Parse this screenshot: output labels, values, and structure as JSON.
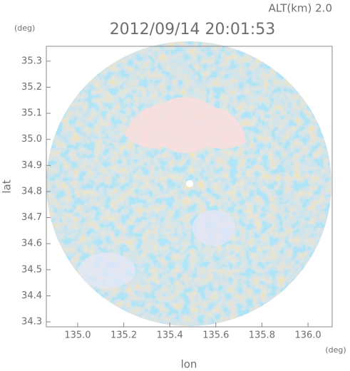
{
  "chart_data": {
    "type": "map",
    "title": "2012/09/14 20:01:53",
    "alt_label": "ALT(km) 2.0",
    "y_unit": "(deg)",
    "x_unit": "(deg)",
    "xlabel": "lon",
    "ylabel": "lat",
    "xlim": [
      134.864,
      136.105
    ],
    "ylim": [
      34.281,
      35.357
    ],
    "xticks": [
      {
        "value": 135.0,
        "label": "135.0"
      },
      135.2,
      135.4,
      135.6,
      135.8,
      {
        "value": 136.0,
        "label": "136.0"
      }
    ],
    "yticks": [
      34.3,
      34.4,
      34.5,
      34.6,
      34.7,
      34.8,
      34.9,
      {
        "value": 35.0,
        "label": "35.0"
      },
      35.1,
      35.2,
      35.3
    ]
  }
}
